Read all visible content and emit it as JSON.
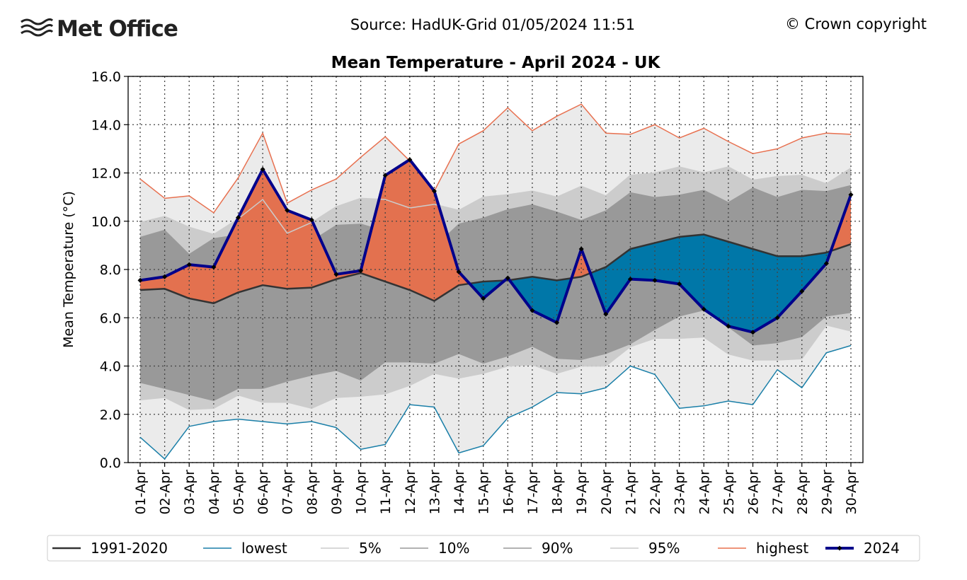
{
  "header": {
    "logo_text": "Met Office",
    "source": "Source: HadUK-Grid 01/05/2024 11:51",
    "copyright": "© Crown copyright"
  },
  "colors": {
    "mean": "#333333",
    "lowest": "#1a7fa8",
    "p5": "#cccccc",
    "p10": "#999999",
    "p90": "#999999",
    "p95": "#cccccc",
    "highest": "#e8704f",
    "y2024": "#00008b",
    "above_fill": "#e3714f",
    "below_fill": "#0077a8",
    "band_outer": "#ebebeb",
    "band_mid": "#cccccc",
    "band_inner": "#999999"
  },
  "chart_data": {
    "type": "line",
    "title": "Mean Temperature - April 2024 - UK",
    "xlabel": "",
    "ylabel": "Mean Temperature (°C)",
    "ylim": [
      0,
      16
    ],
    "yticks": [
      "0.0",
      "2.0",
      "4.0",
      "6.0",
      "8.0",
      "10.0",
      "12.0",
      "14.0",
      "16.0"
    ],
    "grid": true,
    "legend_position": "bottom",
    "categories": [
      "01-Apr",
      "02-Apr",
      "03-Apr",
      "04-Apr",
      "05-Apr",
      "06-Apr",
      "07-Apr",
      "08-Apr",
      "09-Apr",
      "10-Apr",
      "11-Apr",
      "12-Apr",
      "13-Apr",
      "14-Apr",
      "15-Apr",
      "16-Apr",
      "17-Apr",
      "18-Apr",
      "19-Apr",
      "20-Apr",
      "21-Apr",
      "22-Apr",
      "23-Apr",
      "24-Apr",
      "25-Apr",
      "26-Apr",
      "27-Apr",
      "28-Apr",
      "29-Apr",
      "30-Apr"
    ],
    "series": [
      {
        "key": "mean",
        "name": "1991-2020",
        "values": [
          7.15,
          7.2,
          6.8,
          6.6,
          7.05,
          7.35,
          7.2,
          7.25,
          7.6,
          7.85,
          7.5,
          7.15,
          6.7,
          7.35,
          7.5,
          7.55,
          7.7,
          7.55,
          7.7,
          8.1,
          8.85,
          9.1,
          9.35,
          9.45,
          9.15,
          8.85,
          8.55,
          8.55,
          8.7,
          9.05
        ]
      },
      {
        "key": "lowest",
        "name": "lowest",
        "values": [
          1.05,
          0.15,
          1.5,
          1.7,
          1.8,
          1.7,
          1.6,
          1.7,
          1.45,
          0.55,
          0.75,
          2.4,
          2.3,
          0.4,
          0.7,
          1.85,
          2.3,
          2.9,
          2.85,
          3.1,
          4.0,
          3.65,
          2.25,
          2.35,
          2.55,
          2.4,
          3.85,
          3.1,
          4.55,
          4.85
        ]
      },
      {
        "key": "p5",
        "name": "5%",
        "values": [
          2.6,
          2.7,
          2.2,
          2.25,
          2.8,
          2.5,
          2.5,
          2.25,
          2.7,
          2.75,
          2.85,
          3.2,
          3.7,
          3.5,
          3.7,
          4.0,
          4.05,
          3.7,
          4.0,
          4.0,
          4.8,
          5.15,
          5.15,
          5.2,
          4.5,
          4.25,
          4.25,
          4.3,
          5.7,
          5.45
        ]
      },
      {
        "key": "p10",
        "name": "10%",
        "values": [
          3.3,
          3.05,
          2.8,
          2.55,
          3.05,
          3.05,
          3.35,
          3.6,
          3.8,
          3.4,
          4.15,
          4.15,
          4.1,
          4.5,
          4.1,
          4.4,
          4.8,
          4.3,
          4.25,
          4.5,
          4.9,
          5.5,
          6.05,
          6.3,
          5.6,
          4.85,
          4.95,
          5.2,
          6.05,
          6.2
        ]
      },
      {
        "key": "p90",
        "name": "90%",
        "values": [
          9.35,
          9.65,
          8.65,
          9.3,
          9.45,
          9.8,
          9.05,
          9.2,
          9.85,
          9.9,
          9.6,
          9.5,
          8.95,
          9.9,
          10.15,
          10.5,
          10.7,
          10.4,
          10.05,
          10.45,
          11.2,
          11.0,
          11.1,
          11.3,
          10.8,
          11.4,
          11.0,
          11.3,
          11.25,
          11.5
        ]
      },
      {
        "key": "p95",
        "name": "95%",
        "values": [
          9.95,
          10.2,
          9.75,
          9.45,
          10.1,
          10.9,
          9.5,
          9.95,
          10.6,
          10.95,
          10.9,
          10.55,
          10.7,
          10.45,
          11.0,
          11.1,
          11.25,
          11.0,
          11.45,
          11.05,
          11.9,
          12.0,
          12.25,
          12.0,
          12.25,
          11.7,
          11.85,
          11.9,
          11.55,
          12.2
        ]
      },
      {
        "key": "highest",
        "name": "highest",
        "values": [
          11.75,
          10.95,
          11.05,
          10.35,
          11.8,
          13.65,
          10.75,
          11.3,
          11.75,
          12.65,
          13.5,
          12.5,
          11.25,
          13.2,
          13.75,
          14.7,
          13.75,
          14.35,
          14.85,
          13.65,
          13.6,
          14.0,
          13.45,
          13.85,
          13.3,
          12.8,
          13.0,
          13.45,
          13.65,
          13.6
        ]
      },
      {
        "key": "y2024",
        "name": "2024",
        "values": [
          7.55,
          7.7,
          8.2,
          8.1,
          10.15,
          12.15,
          10.45,
          10.05,
          7.8,
          7.95,
          11.9,
          12.55,
          11.25,
          7.9,
          6.8,
          7.65,
          6.3,
          5.8,
          8.85,
          6.15,
          7.6,
          7.55,
          7.4,
          6.35,
          5.65,
          5.4,
          6.0,
          7.1,
          8.25,
          11.1
        ]
      }
    ]
  }
}
